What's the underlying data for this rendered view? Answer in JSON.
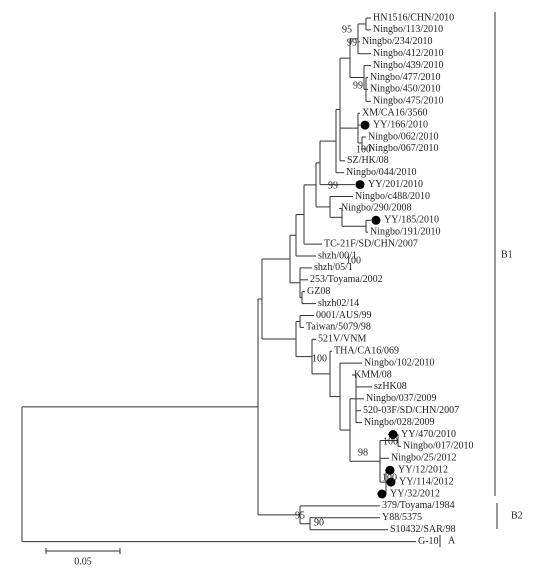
{
  "leaves": [
    {
      "label": "HN1516/CHN/2010"
    },
    {
      "label": "Ningbo/113/2010"
    },
    {
      "label": "Ningbo/234/2010"
    },
    {
      "label": "Ningbo/412/2010"
    },
    {
      "label": "Ningbo/439/2010"
    },
    {
      "label": "Ningbo/477/2010"
    },
    {
      "label": "Ningbo/450/2010"
    },
    {
      "label": "Ningbo/475/2010"
    },
    {
      "label": "XM/CA16/3560"
    },
    {
      "label": "YY/166/2010",
      "marker": true
    },
    {
      "label": "Ningbo/062/2010"
    },
    {
      "label": "Ningbo/067/2010"
    },
    {
      "label": "SZ/HK/08"
    },
    {
      "label": "Ningbo/044/2010"
    },
    {
      "label": "YY/201/2010",
      "marker": true
    },
    {
      "label": "Ningbo/c488/2010"
    },
    {
      "label": "Ningbo/290/2008"
    },
    {
      "label": "YY/185/2010",
      "marker": true
    },
    {
      "label": "Ningbo/191/2010"
    },
    {
      "label": "TC-21F/SD/CHN/2007"
    },
    {
      "label": "shzh/00/1"
    },
    {
      "label": "shzh/05/1"
    },
    {
      "label": "253/Toyama/2002"
    },
    {
      "label": "GZ08"
    },
    {
      "label": "shzh02/14"
    },
    {
      "label": "0001/AUS/99"
    },
    {
      "label": "Taiwan/5079/98"
    },
    {
      "label": "521V/VNM"
    },
    {
      "label": "THA/CA16/069"
    },
    {
      "label": "Ningbo/102/2010"
    },
    {
      "label": "KMM/08"
    },
    {
      "label": "szHK08"
    },
    {
      "label": "Ningbo/037/2009"
    },
    {
      "label": "520-03F/SD/CHN/2007"
    },
    {
      "label": "Ningbo/028/2009"
    },
    {
      "label": "YY/470/2010",
      "marker": true
    },
    {
      "label": "Ningbo/017/2010"
    },
    {
      "label": "Ningbo/25/2012"
    },
    {
      "label": "YY/12/2012",
      "marker": true
    },
    {
      "label": "YY/114/2012",
      "marker": true
    },
    {
      "label": "YY/32/2012",
      "marker": true
    },
    {
      "label": "379/Toyama/1984"
    },
    {
      "label": "Y88/5375"
    },
    {
      "label": "S10432/SAR/98"
    },
    {
      "label": "G-10"
    }
  ],
  "bootstrap": [
    95,
    99,
    99,
    100,
    99,
    100,
    100,
    100,
    98,
    100,
    95,
    90
  ],
  "clades": [
    {
      "label": "B1"
    },
    {
      "label": "B2"
    },
    {
      "label": "A"
    }
  ],
  "scale_bar": 0.05
}
